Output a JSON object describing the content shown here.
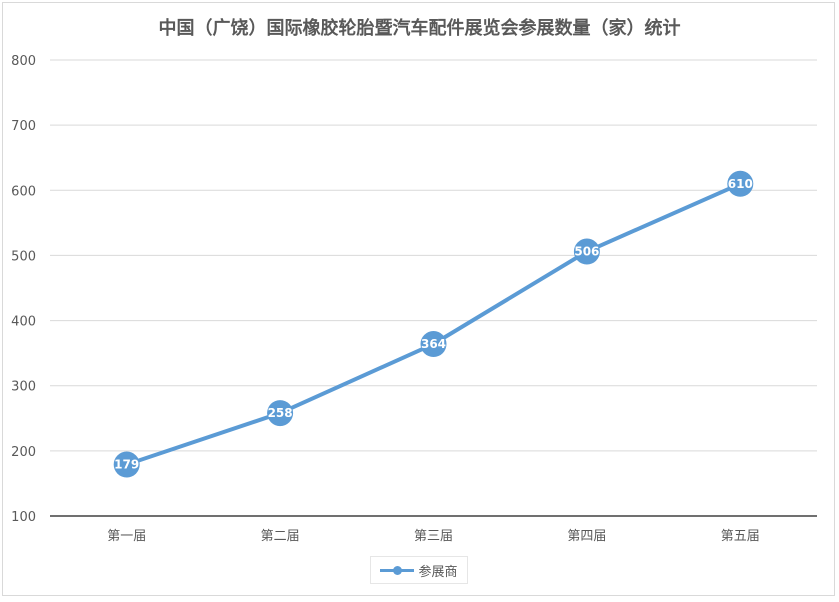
{
  "chart_data": {
    "type": "line",
    "title": "中国（广饶）国际橡胶轮胎暨汽车配件展览会参展数量（家）统计",
    "categories": [
      "第一届",
      "第二届",
      "第三届",
      "第四届",
      "第五届"
    ],
    "series": [
      {
        "name": "参展商",
        "values": [
          179,
          258,
          364,
          506,
          610
        ],
        "color": "#5b9bd5"
      }
    ],
    "yticks": [
      100,
      200,
      300,
      400,
      500,
      600,
      700,
      800
    ],
    "ylim": [
      100,
      800
    ],
    "grid": true,
    "legend": "bottom"
  }
}
